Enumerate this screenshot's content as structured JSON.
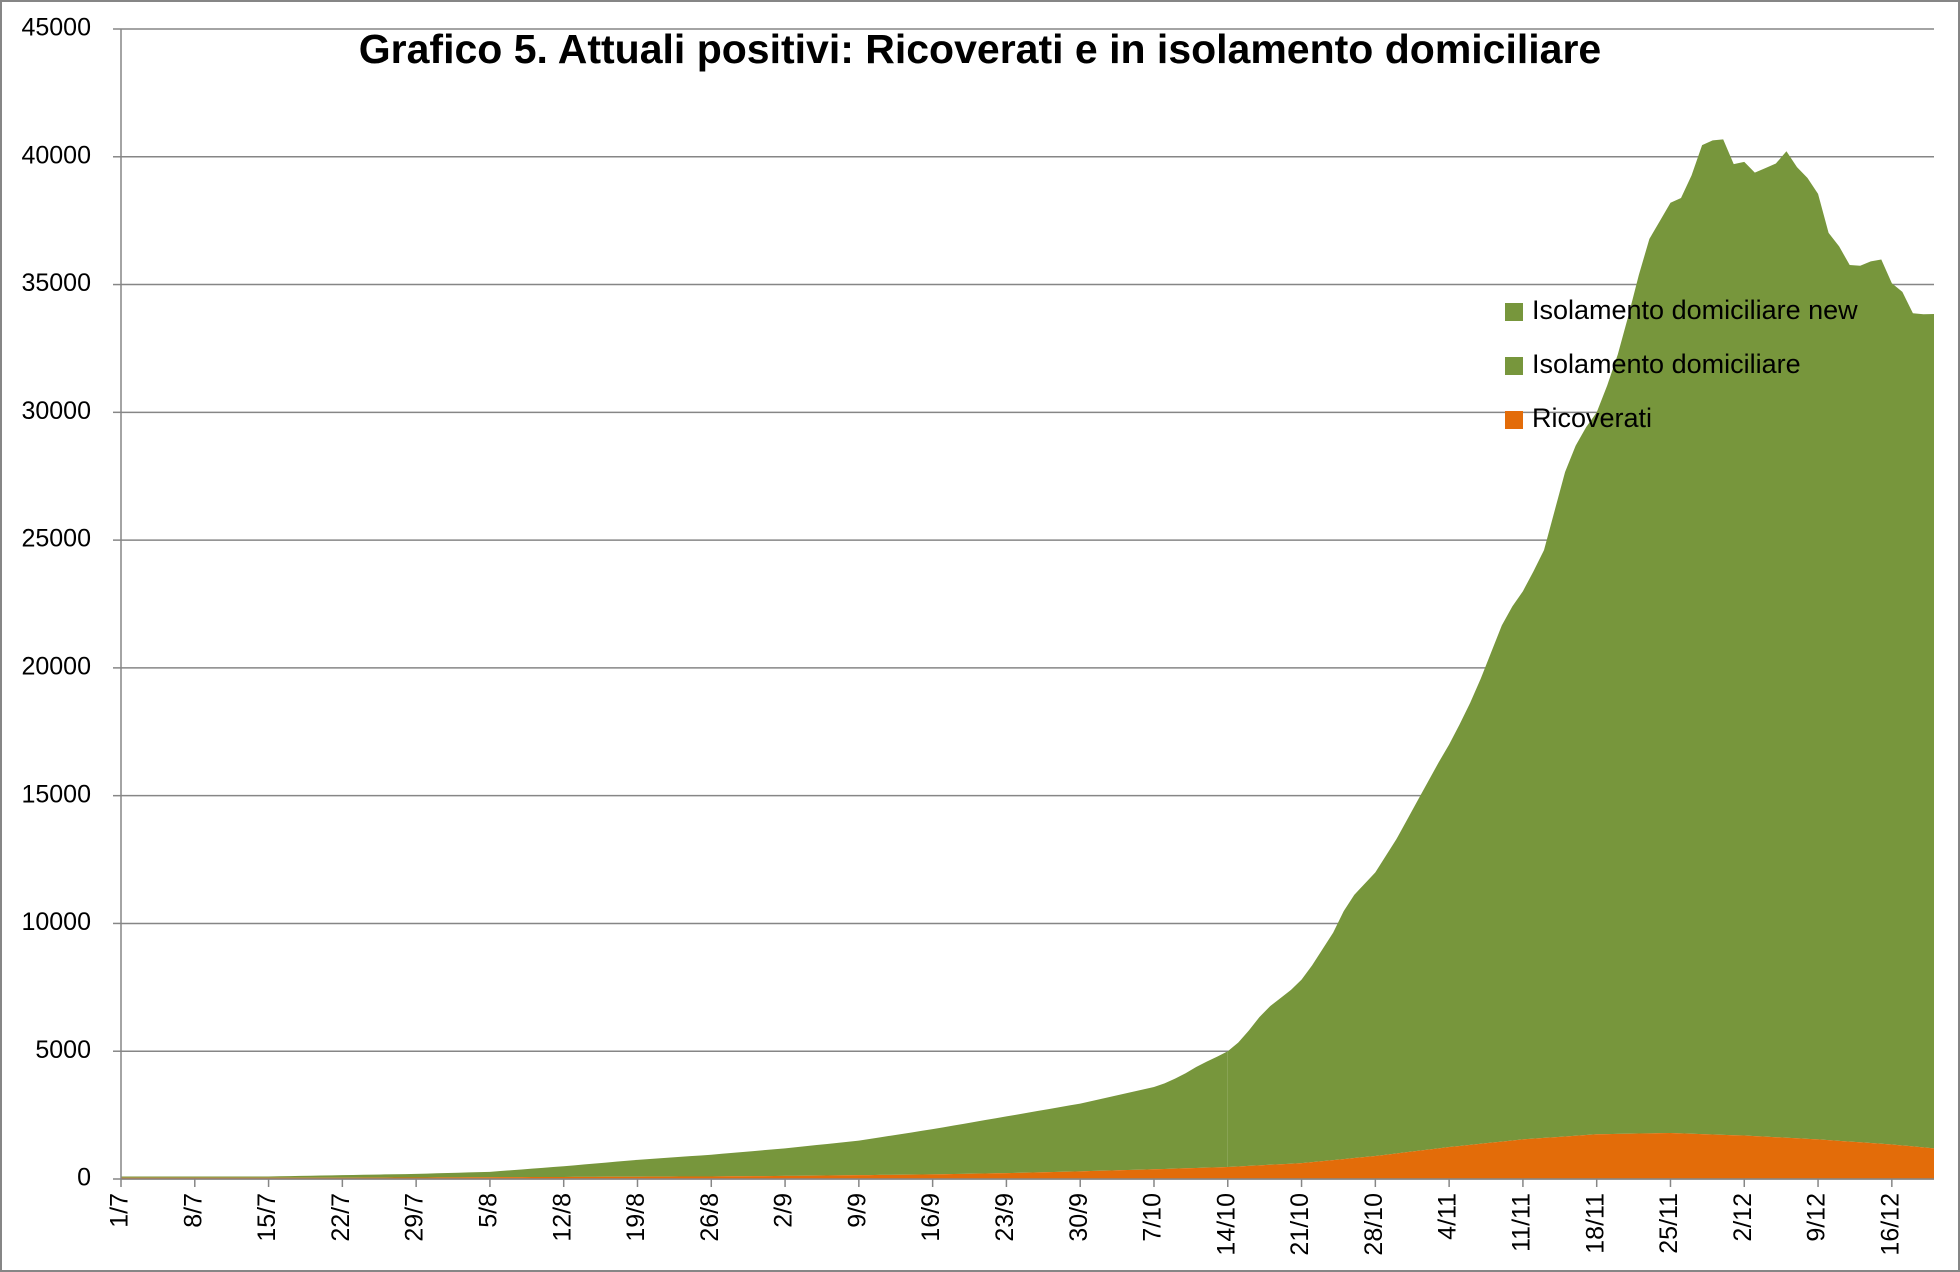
{
  "chart_data": {
    "type": "stacked_area",
    "title": "Grafico 5. Attuali positivi: Ricoverati e in isolamento domiciliare",
    "categories": [
      "1/7",
      null,
      null,
      null,
      null,
      null,
      null,
      "8/7",
      null,
      null,
      null,
      null,
      null,
      null,
      "15/7",
      null,
      null,
      null,
      null,
      null,
      null,
      "22/7",
      null,
      null,
      null,
      null,
      null,
      null,
      "29/7",
      null,
      null,
      null,
      null,
      null,
      null,
      "5/8",
      null,
      null,
      null,
      null,
      null,
      null,
      "12/8",
      null,
      null,
      null,
      null,
      null,
      null,
      "19/8",
      null,
      null,
      null,
      null,
      null,
      null,
      "26/8",
      null,
      null,
      null,
      null,
      null,
      null,
      "2/9",
      null,
      null,
      null,
      null,
      null,
      null,
      "9/9",
      null,
      null,
      null,
      null,
      null,
      null,
      "16/9",
      null,
      null,
      null,
      null,
      null,
      null,
      "23/9",
      null,
      null,
      null,
      null,
      null,
      null,
      "30/9",
      null,
      null,
      null,
      null,
      null,
      null,
      "7/10",
      null,
      null,
      null,
      null,
      null,
      null,
      "14/10",
      null,
      null,
      null,
      null,
      null,
      null,
      "21/10",
      null,
      null,
      null,
      null,
      null,
      null,
      "28/10",
      null,
      null,
      null,
      null,
      null,
      null,
      "4/11",
      null,
      null,
      null,
      null,
      null,
      null,
      "11/11",
      null,
      null,
      null,
      null,
      null,
      null,
      "18/11",
      null,
      null,
      null,
      null,
      null,
      null,
      "25/11",
      null,
      null,
      null,
      null,
      null,
      null,
      "2/12",
      null,
      null,
      null,
      null,
      null,
      null,
      "9/12",
      null,
      null,
      null,
      null,
      null,
      null,
      "16/12",
      null,
      null,
      null,
      null
    ],
    "series": [
      {
        "name": "Isolamento domiciliare new",
        "color": "#77963c",
        "values": [
          null,
          null,
          null,
          null,
          null,
          null,
          null,
          null,
          null,
          null,
          null,
          null,
          null,
          null,
          null,
          null,
          null,
          null,
          null,
          null,
          null,
          null,
          null,
          null,
          null,
          null,
          null,
          null,
          null,
          null,
          null,
          null,
          null,
          null,
          null,
          null,
          null,
          null,
          null,
          null,
          null,
          null,
          null,
          null,
          null,
          null,
          null,
          null,
          null,
          null,
          null,
          null,
          null,
          null,
          null,
          null,
          null,
          null,
          null,
          null,
          null,
          null,
          null,
          null,
          null,
          null,
          null,
          null,
          null,
          null,
          null,
          null,
          null,
          null,
          null,
          null,
          null,
          null,
          null,
          null,
          null,
          null,
          null,
          null,
          null,
          null,
          null,
          null,
          null,
          null,
          null,
          null,
          null,
          null,
          null,
          null,
          null,
          null,
          null,
          null,
          null,
          null,
          null,
          null,
          null,
          4530,
          4850,
          5300,
          5800,
          6200,
          6500,
          6800,
          7180,
          7700,
          8300,
          8900,
          9700,
          10300,
          10700,
          11100,
          11700,
          12300,
          13000,
          13700,
          14400,
          15100,
          15750,
          16500,
          17300,
          18200,
          19200,
          20200,
          20900,
          21450,
          22200,
          23000,
          24500,
          26000,
          27000,
          27700,
          28250,
          29300,
          30500,
          32000,
          33600,
          35000,
          35700,
          36400,
          36600,
          37500,
          38700,
          38900,
          38950,
          38000,
          38100,
          37700,
          37900,
          38100,
          38600,
          38000,
          37600,
          37000,
          35500,
          35000,
          34300,
          34300,
          34500,
          34600,
          33700,
          33400,
          32600,
          32600,
          32650
        ]
      },
      {
        "name": "Isolamento domiciliare",
        "color": "#77963c",
        "values": [
          50,
          50,
          50,
          50,
          50,
          50,
          50,
          50,
          50,
          50,
          50,
          50,
          50,
          50,
          50,
          57,
          64,
          71,
          79,
          86,
          93,
          100,
          106,
          111,
          117,
          123,
          129,
          134,
          140,
          150,
          160,
          170,
          180,
          190,
          200,
          210,
          240,
          270,
          300,
          330,
          360,
          390,
          420,
          454,
          489,
          523,
          557,
          591,
          626,
          660,
          687,
          714,
          741,
          769,
          796,
          823,
          850,
          883,
          916,
          949,
          981,
          1014,
          1047,
          1080,
          1119,
          1157,
          1196,
          1234,
          1273,
          1311,
          1350,
          1410,
          1470,
          1530,
          1590,
          1650,
          1710,
          1770,
          1834,
          1899,
          1963,
          2027,
          2091,
          2156,
          2220,
          2281,
          2343,
          2404,
          2466,
          2527,
          2589,
          2650,
          2731,
          2813,
          2894,
          2976,
          3057,
          3139,
          3220,
          3350,
          3520,
          3720,
          3950,
          4150,
          4330,
          4530,
          null,
          null,
          null,
          null,
          null,
          null,
          null,
          null,
          null,
          null,
          null,
          null,
          null,
          null,
          null,
          null,
          null,
          null,
          null,
          null,
          null,
          null,
          null,
          null,
          null,
          null,
          null,
          null,
          null,
          null,
          null,
          null,
          null,
          null,
          null,
          null,
          null,
          null,
          null,
          null,
          null,
          null,
          null,
          null,
          null,
          null,
          null,
          null,
          null,
          null,
          null,
          null,
          null,
          null,
          null,
          null,
          null,
          null,
          null,
          null,
          null,
          null,
          null,
          null,
          null,
          null,
          null
        ]
      },
      {
        "name": "Ricoverati",
        "color": "#e36c09",
        "values": [
          50,
          50,
          50,
          50,
          50,
          50,
          50,
          50,
          50,
          50,
          50,
          50,
          50,
          50,
          50,
          50,
          50,
          50,
          50,
          50,
          50,
          50,
          51,
          53,
          54,
          56,
          57,
          59,
          60,
          61,
          63,
          64,
          66,
          67,
          69,
          70,
          71,
          73,
          74,
          76,
          77,
          79,
          80,
          81,
          83,
          84,
          86,
          87,
          89,
          90,
          91,
          93,
          94,
          96,
          97,
          99,
          100,
          103,
          106,
          109,
          111,
          114,
          117,
          120,
          124,
          129,
          133,
          137,
          141,
          146,
          150,
          154,
          159,
          163,
          167,
          171,
          176,
          180,
          187,
          194,
          201,
          209,
          216,
          223,
          230,
          240,
          250,
          260,
          270,
          280,
          290,
          300,
          311,
          323,
          334,
          346,
          357,
          369,
          380,
          393,
          406,
          419,
          431,
          444,
          457,
          470,
          491,
          513,
          534,
          556,
          577,
          599,
          620,
          660,
          700,
          740,
          780,
          820,
          860,
          900,
          950,
          1000,
          1050,
          1100,
          1150,
          1200,
          1250,
          1293,
          1336,
          1379,
          1421,
          1464,
          1507,
          1550,
          1579,
          1607,
          1636,
          1664,
          1693,
          1721,
          1750,
          1757,
          1764,
          1771,
          1779,
          1786,
          1793,
          1800,
          1786,
          1771,
          1757,
          1743,
          1729,
          1714,
          1700,
          1679,
          1657,
          1636,
          1614,
          1593,
          1571,
          1550,
          1521,
          1493,
          1464,
          1436,
          1407,
          1379,
          1350,
          1313,
          1275,
          1238,
          1200
        ]
      }
    ],
    "ylim": [
      0,
      45000
    ],
    "yticks": [
      0,
      5000,
      10000,
      15000,
      20000,
      25000,
      30000,
      35000,
      40000,
      45000
    ],
    "grid": true,
    "legend": "right"
  }
}
